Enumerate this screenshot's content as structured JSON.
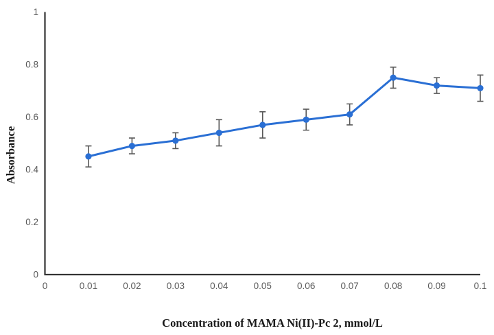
{
  "figure": {
    "background": "#ffffff"
  },
  "chart_data": {
    "type": "line",
    "title": "",
    "xlabel": "Concentration of MAMA Ni(II)-Pc 2, mmol/L",
    "ylabel": "Absorbance",
    "x": [
      0.01,
      0.02,
      0.03,
      0.04,
      0.05,
      0.06,
      0.07,
      0.08,
      0.09,
      0.1
    ],
    "series": [
      {
        "name": "Absorbance",
        "values": [
          0.45,
          0.49,
          0.51,
          0.54,
          0.57,
          0.59,
          0.61,
          0.75,
          0.72,
          0.71
        ],
        "errors": [
          0.04,
          0.03,
          0.03,
          0.05,
          0.05,
          0.04,
          0.04,
          0.04,
          0.03,
          0.05
        ]
      }
    ],
    "xlim": [
      0,
      0.1
    ],
    "ylim": [
      0,
      1
    ],
    "x_tick_labels": [
      "0",
      "0.01",
      "0.02",
      "0.03",
      "0.04",
      "0.05",
      "0.06",
      "0.07",
      "0.08",
      "0.09",
      "0.1"
    ],
    "y_tick_labels": [
      "0",
      "0.2",
      "0.4",
      "0.6",
      "0.8",
      "1"
    ],
    "grid": false,
    "legend": false,
    "colors": {
      "line": "#2a6fd4",
      "marker": "#2a6fd4",
      "error_bar": "#595959",
      "axis": "#333333",
      "tick_label": "#595959"
    }
  }
}
